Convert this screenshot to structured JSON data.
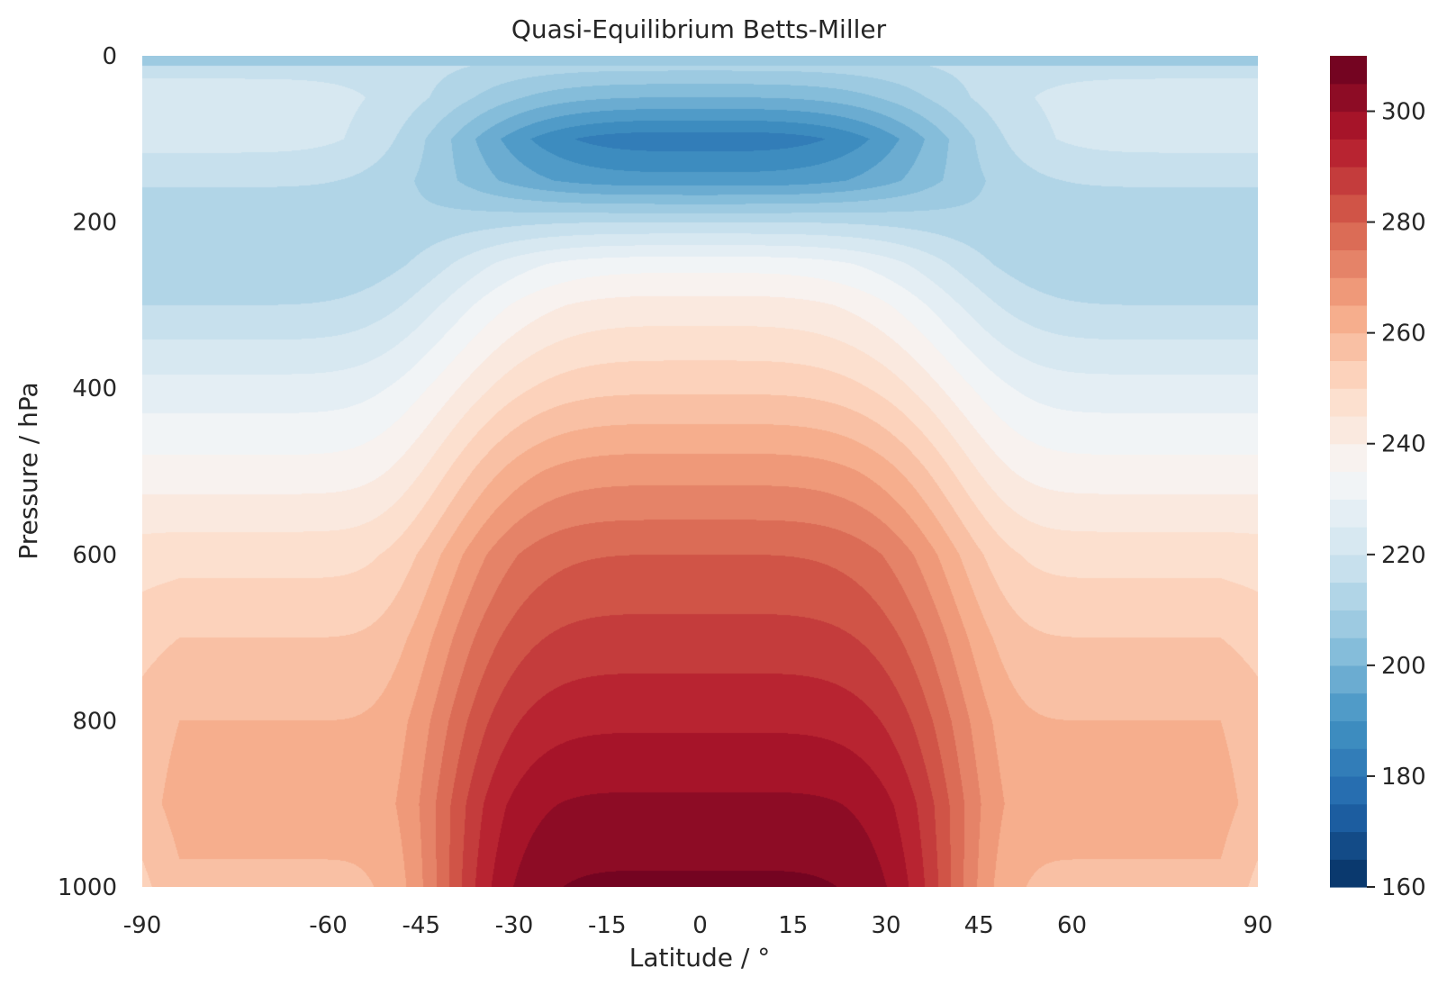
{
  "chart_data": {
    "type": "contourf",
    "title": "Quasi-Equilibrium Betts-Miller",
    "xlabel": "Latitude / °",
    "ylabel": "Pressure / hPa",
    "colormap": "RdBu_r",
    "x_ticks": [
      "-90",
      "-60",
      "-45",
      "-30",
      "-15",
      "0",
      "15",
      "30",
      "45",
      "60",
      "90"
    ],
    "y_ticks": [
      "0",
      "200",
      "400",
      "600",
      "800",
      "1000"
    ],
    "y_inverted": true,
    "xlim": [
      -90,
      90
    ],
    "ylim": [
      1000,
      0
    ],
    "colorbar": {
      "ticks": [
        "160",
        "180",
        "200",
        "220",
        "240",
        "260",
        "280",
        "300"
      ],
      "range": [
        160,
        310
      ],
      "level_step": 5
    },
    "fields": {
      "latitude": [
        -90,
        -75,
        -60,
        -45,
        -30,
        -15,
        0,
        15,
        30,
        45,
        60,
        75,
        90
      ],
      "pressure_levels": [
        5,
        50,
        100,
        150,
        200,
        250,
        300,
        400,
        500,
        600,
        700,
        800,
        900,
        1000
      ],
      "temperature_profiles": {
        "equator": [
          214,
          200,
          182,
          192,
          215,
          233,
          242,
          254,
          268,
          280,
          287,
          294,
          301,
          306
        ],
        "pole": [
          218,
          222,
          222,
          216,
          210,
          210,
          215,
          227,
          237,
          248,
          255,
          260,
          262,
          259
        ]
      }
    }
  }
}
